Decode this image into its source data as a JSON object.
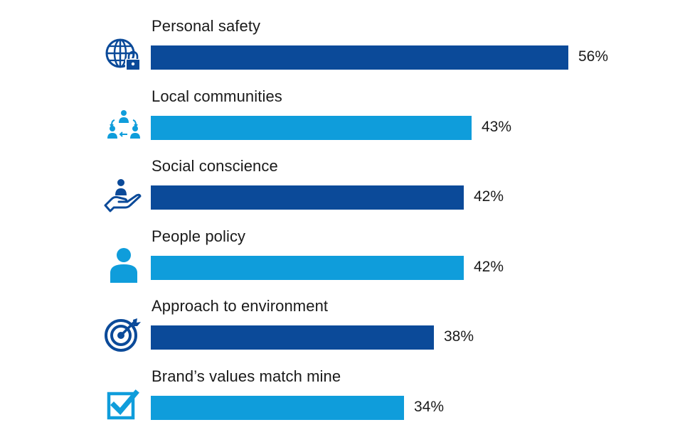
{
  "chart_data": {
    "type": "bar",
    "orientation": "horizontal",
    "categories": [
      "Personal safety",
      "Local communities",
      "Social conscience",
      "People policy",
      "Approach to environment",
      "Brand’s values match mine"
    ],
    "values": [
      56,
      43,
      42,
      42,
      38,
      34
    ],
    "value_labels": [
      "56%",
      "43%",
      "42%",
      "42%",
      "38%",
      "34%"
    ],
    "icons": [
      "globe-lock-icon",
      "community-people-icon",
      "hand-person-icon",
      "person-icon",
      "target-arrow-icon",
      "checkbox-tick-icon"
    ],
    "bar_colors": [
      "#0b4a99",
      "#0f9ddb",
      "#0b4a99",
      "#0f9ddb",
      "#0b4a99",
      "#0f9ddb"
    ],
    "xlim": [
      0,
      56
    ],
    "grid": false,
    "legend": "none"
  }
}
